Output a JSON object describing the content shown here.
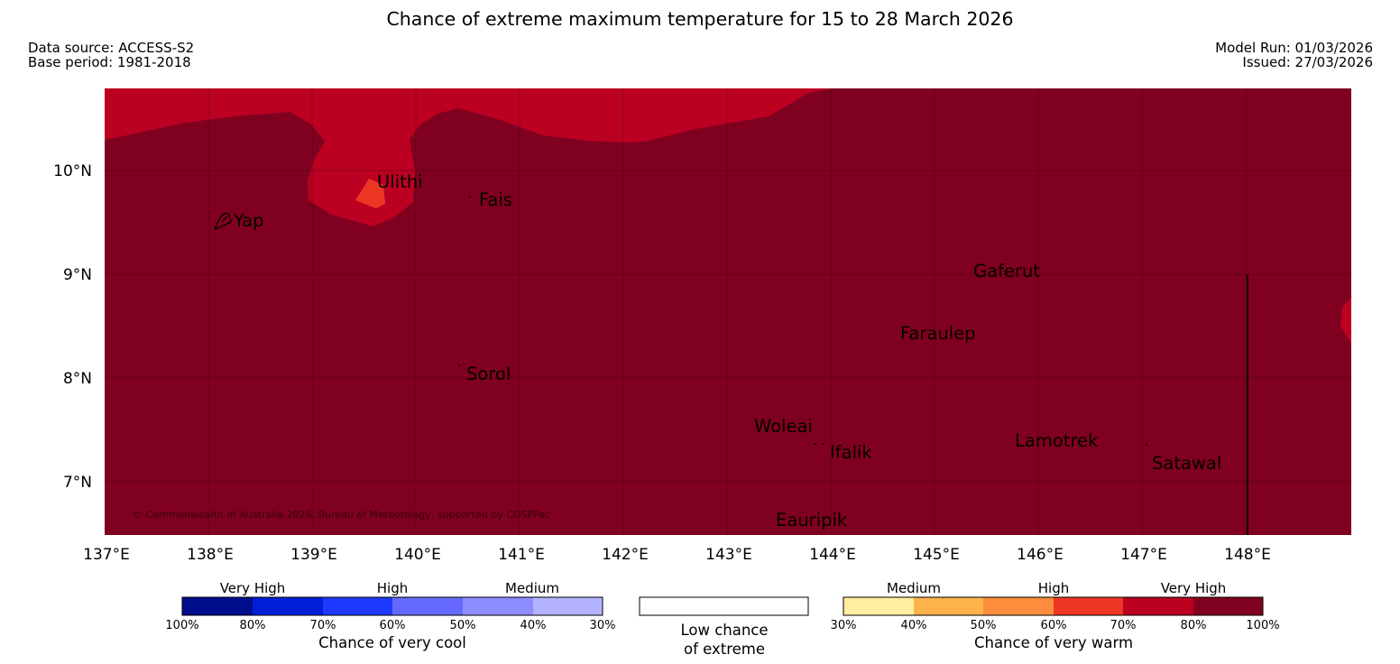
{
  "title": "Chance of extreme maximum temperature for 15 to 28 March 2026",
  "meta": {
    "data_source": "Data source: ACCESS-S2",
    "base_period": "Base period: 1981-2018",
    "model_run": "Model Run: 01/03/2026",
    "issued": "Issued: 27/03/2026"
  },
  "map": {
    "latitude_labels": [
      "10°N",
      "9°N",
      "8°N",
      "7°N"
    ],
    "longitude_labels": [
      "137°E",
      "138°E",
      "139°E",
      "140°E",
      "141°E",
      "142°E",
      "143°E",
      "144°E",
      "145°E",
      "146°E",
      "147°E",
      "148°E"
    ],
    "places": {
      "yap": "Yap",
      "ulithi": "Ulithi",
      "fais": "Fais",
      "sorol": "Sorol",
      "gaferut": "Gaferut",
      "faraulep": "Faraulep",
      "woleai": "Woleai",
      "ifalik": "Ifalik",
      "lamotrek": "Lamotrek",
      "satawal": "Satawal",
      "eauripik": "Eauripik"
    },
    "copyright": "© Commonwealth of Australia 2026, Bureau of Meteorology, supported by COSPPac",
    "colors": {
      "very_high_80_100": "#800020",
      "very_high_70_80": "#bb0021",
      "high_60_70": "#ee3624"
    }
  },
  "legend": {
    "cool": {
      "categories": [
        "Very High",
        "High",
        "Medium"
      ],
      "ticks": [
        "100%",
        "80%",
        "70%",
        "60%",
        "50%",
        "40%",
        "30%"
      ],
      "colors": [
        "#000d8c",
        "#001fd6",
        "#1f3aff",
        "#6569ff",
        "#8d8dff",
        "#b3b3ff"
      ],
      "caption": "Chance of very cool"
    },
    "neutral": {
      "caption_line1": "Low chance",
      "caption_line2": "of extreme",
      "color": "#ffffff"
    },
    "warm": {
      "categories": [
        "Medium",
        "High",
        "Very High"
      ],
      "ticks": [
        "30%",
        "40%",
        "50%",
        "60%",
        "70%",
        "80%",
        "100%"
      ],
      "colors": [
        "#ffeda0",
        "#feb24c",
        "#fd8d3c",
        "#ee3624",
        "#bb0021",
        "#800020"
      ],
      "caption": "Chance of very warm"
    }
  }
}
